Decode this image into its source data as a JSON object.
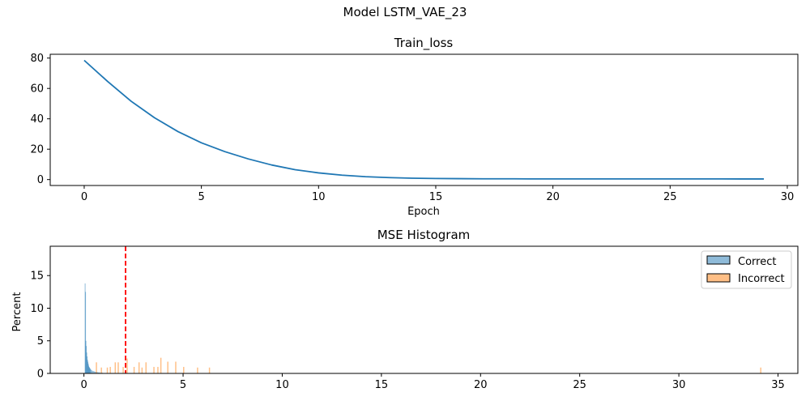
{
  "figure": {
    "suptitle": "Model LSTM_VAE_23"
  },
  "chart_data": [
    {
      "type": "line",
      "title": "Train_loss",
      "xlabel": "Epoch",
      "ylabel": "",
      "xlim": [
        -1.45,
        30.45
      ],
      "ylim": [
        -3.9,
        82.5
      ],
      "xticks": [
        0,
        5,
        10,
        15,
        20,
        25,
        30
      ],
      "yticks": [
        0,
        20,
        40,
        60,
        80
      ],
      "color": "#1f77b4",
      "series": [
        {
          "x": [
            0,
            1,
            2,
            3,
            4,
            5,
            6,
            7,
            8,
            9,
            10,
            11,
            12,
            13,
            14,
            15,
            16,
            17,
            18,
            19,
            20,
            21,
            22,
            23,
            24,
            25,
            26,
            27,
            28,
            29
          ],
          "values": [
            78.5,
            64.6,
            51.6,
            40.7,
            31.6,
            24.2,
            18.4,
            13.6,
            9.6,
            6.5,
            4.4,
            2.9,
            1.9,
            1.3,
            0.9,
            0.7,
            0.6,
            0.5,
            0.5,
            0.45,
            0.45,
            0.45,
            0.45,
            0.45,
            0.45,
            0.45,
            0.45,
            0.45,
            0.4,
            0.4
          ]
        }
      ]
    },
    {
      "type": "histogram",
      "title": "MSE Histogram",
      "xlabel": "",
      "ylabel": "Percent",
      "xlim": [
        -1.7,
        36.0
      ],
      "ylim": [
        0,
        19.5
      ],
      "xticks": [
        0,
        5,
        10,
        15,
        20,
        25,
        30,
        35
      ],
      "yticks": [
        0,
        5,
        10,
        15
      ],
      "threshold": 2.1,
      "threshold_color": "#ff0000",
      "legend_position": "upper right",
      "series": [
        {
          "name": "Correct",
          "color": "#1f77b4",
          "bins": [
            [
              0.04,
              0.06,
              13.8
            ],
            [
              0.06,
              0.08,
              12.5
            ],
            [
              0.08,
              0.1,
              5.0
            ],
            [
              0.1,
              0.12,
              4.2
            ],
            [
              0.12,
              0.14,
              3.2
            ],
            [
              0.14,
              0.16,
              2.6
            ],
            [
              0.16,
              0.18,
              2.1
            ],
            [
              0.18,
              0.2,
              1.8
            ],
            [
              0.2,
              0.22,
              1.5
            ],
            [
              0.22,
              0.24,
              1.2
            ],
            [
              0.24,
              0.26,
              1.0
            ],
            [
              0.26,
              0.28,
              0.9
            ],
            [
              0.28,
              0.3,
              0.8
            ],
            [
              0.3,
              0.33,
              0.7
            ],
            [
              0.33,
              0.36,
              0.6
            ],
            [
              0.36,
              0.4,
              0.5
            ],
            [
              0.4,
              0.45,
              0.4
            ],
            [
              0.45,
              0.5,
              0.35
            ],
            [
              0.5,
              0.55,
              0.3
            ],
            [
              0.55,
              0.6,
              0.25
            ],
            [
              0.6,
              0.7,
              0.2
            ],
            [
              0.7,
              0.8,
              0.15
            ],
            [
              0.8,
              0.95,
              0.1
            ]
          ]
        },
        {
          "name": "Incorrect",
          "color": "#ff7f0e",
          "bins": [
            [
              0.6,
              0.66,
              1.7
            ],
            [
              0.85,
              0.91,
              0.9
            ],
            [
              1.15,
              1.21,
              0.9
            ],
            [
              1.3,
              1.36,
              1.0
            ],
            [
              1.55,
              1.61,
              1.7
            ],
            [
              1.7,
              1.76,
              1.7
            ],
            [
              1.95,
              2.01,
              1.0
            ],
            [
              2.15,
              2.21,
              2.3
            ],
            [
              2.5,
              2.56,
              1.0
            ],
            [
              2.75,
              2.81,
              1.7
            ],
            [
              2.9,
              2.96,
              0.9
            ],
            [
              3.1,
              3.16,
              1.7
            ],
            [
              3.5,
              3.56,
              1.0
            ],
            [
              3.7,
              3.76,
              1.0
            ],
            [
              3.85,
              3.91,
              2.4
            ],
            [
              4.2,
              4.26,
              1.8
            ],
            [
              4.6,
              4.66,
              1.8
            ],
            [
              5.0,
              5.06,
              1.0
            ],
            [
              5.7,
              5.76,
              0.9
            ],
            [
              6.3,
              6.36,
              0.9
            ],
            [
              34.1,
              34.16,
              0.9
            ]
          ]
        }
      ]
    }
  ]
}
